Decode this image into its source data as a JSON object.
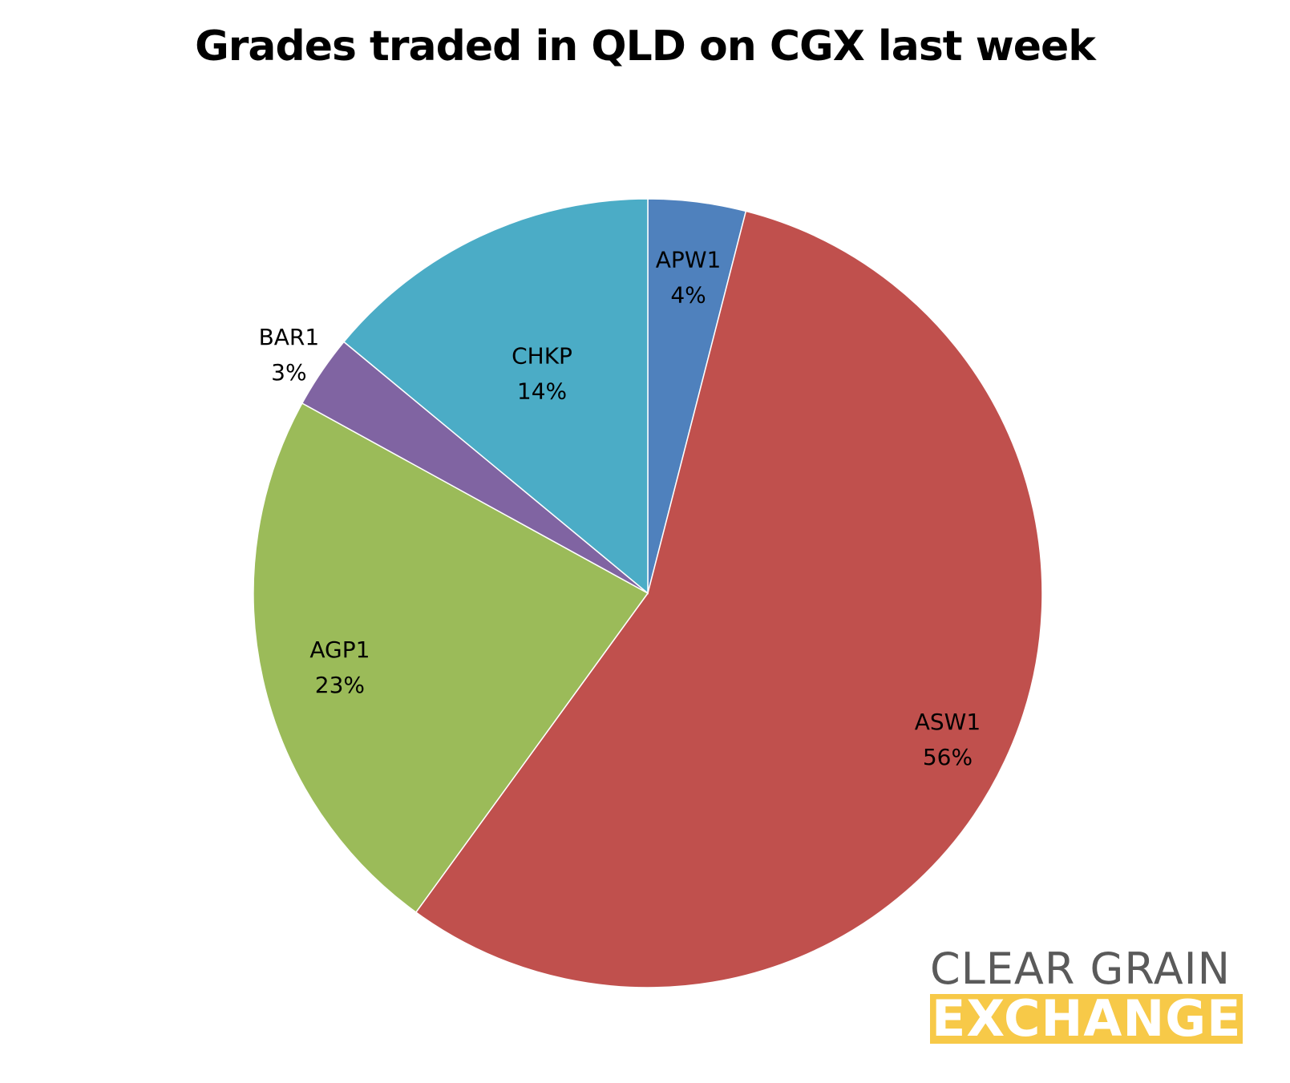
{
  "chart_data": {
    "type": "pie",
    "title": "Grades traded in QLD on CGX last week",
    "slices": [
      {
        "label": "APW1",
        "value": 4,
        "value_label": "4%",
        "color": "#4f81bd"
      },
      {
        "label": "ASW1",
        "value": 56,
        "value_label": "56%",
        "color": "#c0504d"
      },
      {
        "label": "AGP1",
        "value": 23,
        "value_label": "23%",
        "color": "#9bbb59"
      },
      {
        "label": "BAR1",
        "value": 3,
        "value_label": "3%",
        "color": "#8064a2"
      },
      {
        "label": "CHKP",
        "value": 14,
        "value_label": "14%",
        "color": "#4bacc6"
      }
    ],
    "start": "12 o'clock",
    "direction": "clockwise"
  },
  "logo": {
    "line1": "CLEAR GRAIN",
    "line2": "EXCHANGE",
    "line1_color": "#5a5a5a",
    "line2_bg": "#f7c948"
  }
}
